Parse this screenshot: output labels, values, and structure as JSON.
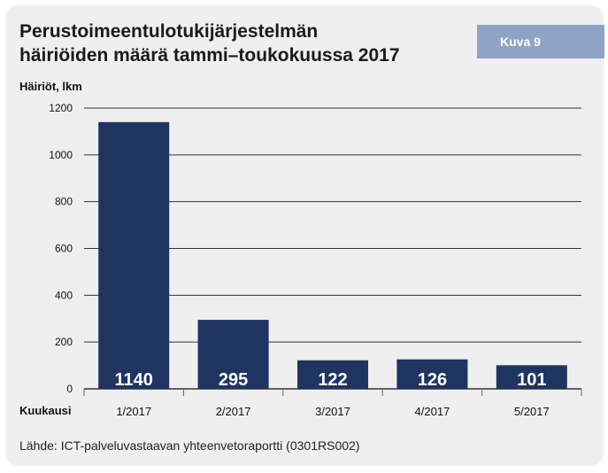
{
  "figure": {
    "title_line1": "Perustoimeentulotukijärjestelmän",
    "title_line2": "häiriöiden määrä tammi–toukokuussa 2017",
    "badge": "Kuva 9",
    "source": "Lähde: ICT-palveluvastaavan yhteenvetoraportti (0301RS002)"
  },
  "colors": {
    "bar": "#1f3461",
    "badge": "#8fa4c4",
    "panel": "#efefef",
    "gridline": "#333333"
  },
  "chart_data": {
    "type": "bar",
    "ylabel": "Häiriöt, lkm",
    "xlabel": "Kuukausi",
    "categories": [
      "1/2017",
      "2/2017",
      "3/2017",
      "4/2017",
      "5/2017"
    ],
    "values": [
      1140,
      295,
      122,
      126,
      101
    ],
    "ylim": [
      0,
      1200
    ],
    "yticks": [
      0,
      200,
      400,
      600,
      800,
      1000,
      1200
    ],
    "grid": true,
    "data_labels": "inside-bottom",
    "legend": "none"
  }
}
